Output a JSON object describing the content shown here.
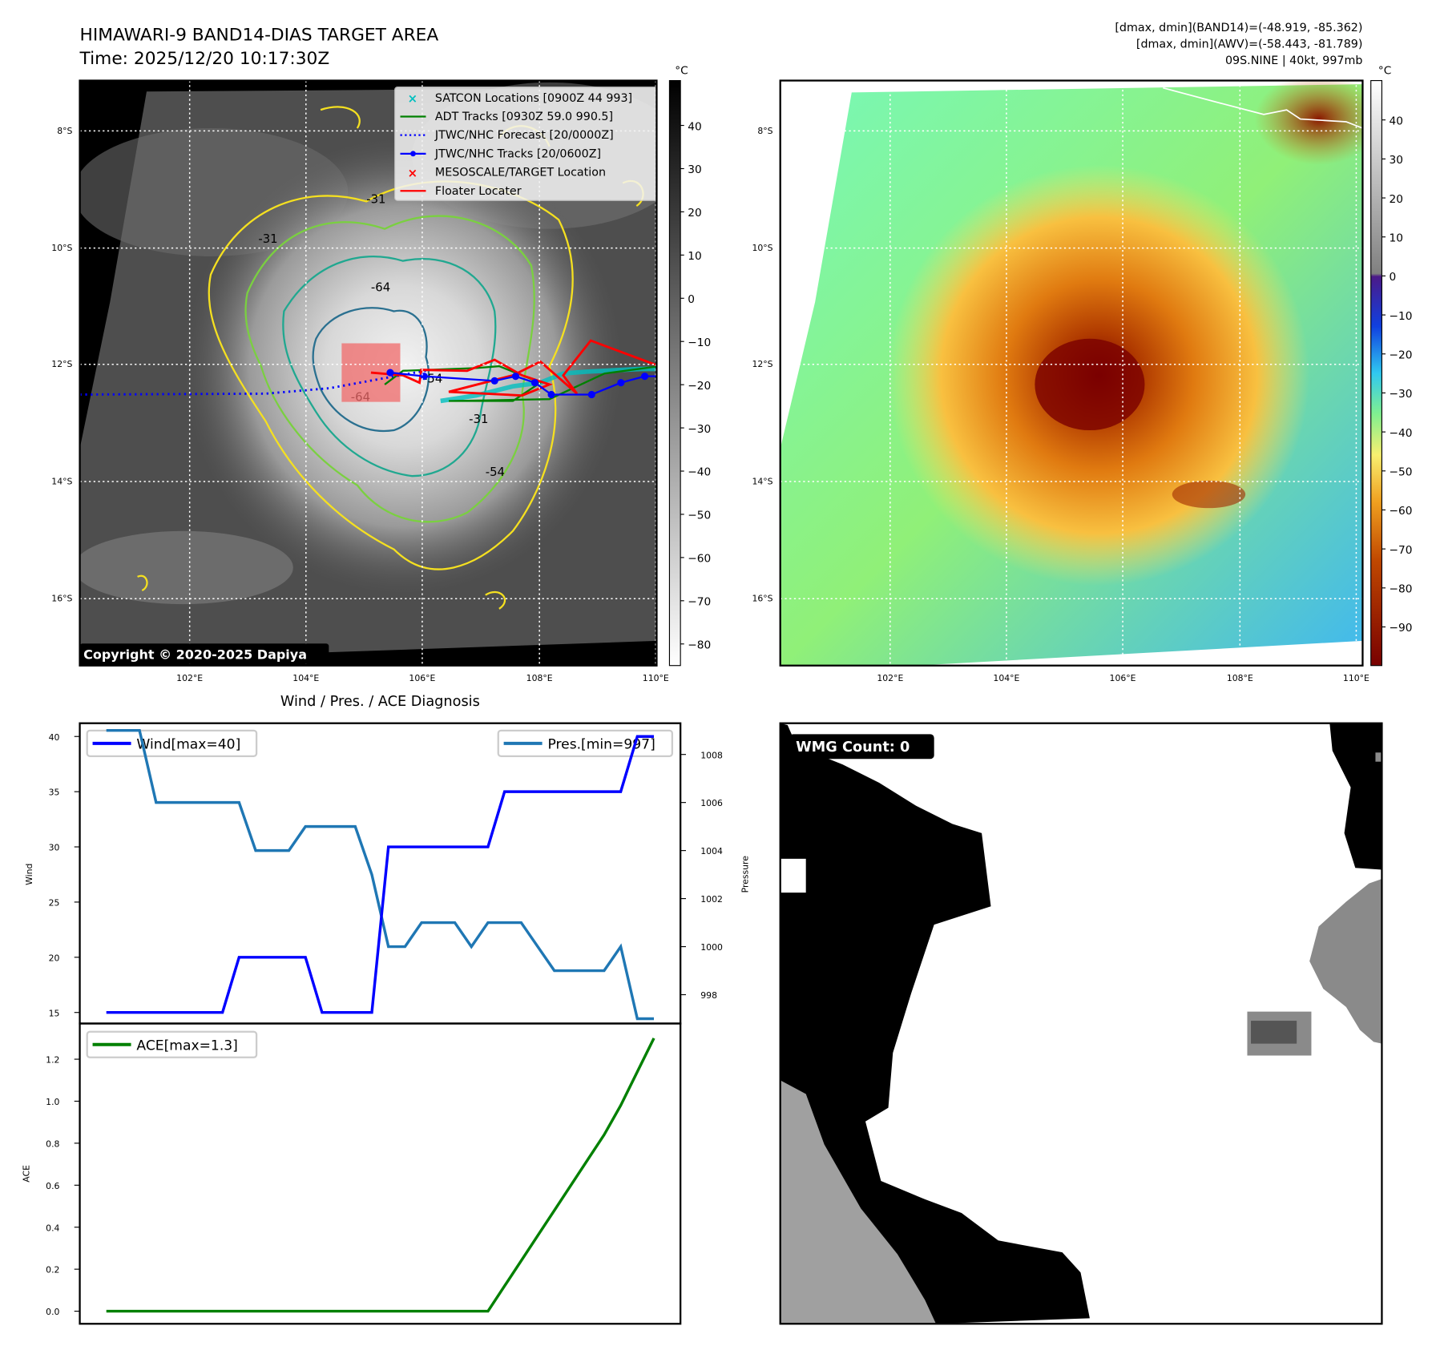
{
  "header": {
    "title_line1": "HIMAWARI-9 BAND14-DIAS TARGET AREA",
    "title_line2": "Time: 2025/12/20 10:17:30Z",
    "info_line1": "[dmax, dmin](BAND14)=(-48.919, -85.362)",
    "info_line2": "[dmax, dmin](AWV)=(-58.443, -81.789)",
    "info_line3": "09S.NINE | 40kt, 997mb"
  },
  "ir_map": {
    "copyright": "Copyright © 2020-2025 Dapiya",
    "colorbar_unit": "°C",
    "colorbar_ticks": [
      "40",
      "30",
      "20",
      "10",
      "0",
      "−10",
      "−20",
      "−30",
      "−40",
      "−50",
      "−60",
      "−70",
      "−80"
    ],
    "colorbar_values": [
      40,
      30,
      20,
      10,
      0,
      -10,
      -20,
      -30,
      -40,
      -50,
      -60,
      -70,
      -80
    ],
    "contour_labels": [
      "-31",
      "-31",
      "-64",
      "-54",
      "-64",
      "-31",
      "-54"
    ],
    "legend": [
      {
        "label": "SATCON Locations [0900Z 44 993]",
        "color": "#00bfbf",
        "style": "x"
      },
      {
        "label": "ADT Tracks [0930Z 59.0 990.5]",
        "color": "#008000",
        "style": "line"
      },
      {
        "label": "JTWC/NHC Forecast [20/0000Z]",
        "color": "#0000ff",
        "style": "dotted"
      },
      {
        "label": "JTWC/NHC Tracks [20/0600Z]",
        "color": "#0000ff",
        "style": "line-dot"
      },
      {
        "label": "MESOSCALE/TARGET Location",
        "color": "#ff0000",
        "style": "x"
      },
      {
        "label": "Floater Locater",
        "color": "#ff0000",
        "style": "line"
      }
    ]
  },
  "awv_map": {
    "colorbar_unit": "°C",
    "colorbar_ticks": [
      "40",
      "30",
      "20",
      "10",
      "0",
      "−10",
      "−20",
      "−30",
      "−40",
      "−50",
      "−60",
      "−70",
      "−80",
      "−90"
    ],
    "colorbar_values": [
      40,
      30,
      20,
      10,
      0,
      -10,
      -20,
      -30,
      -40,
      -50,
      -60,
      -70,
      -80,
      -90
    ]
  },
  "map_axes": {
    "lat_ticks": [
      "8°S",
      "10°S",
      "12°S",
      "14°S",
      "16°S"
    ],
    "lon_ticks": [
      "102°E",
      "104°E",
      "106°E",
      "108°E",
      "110°E"
    ]
  },
  "wmg": {
    "label": "WMG Count: 0"
  },
  "colors": {
    "wind": "#0000ff",
    "pressure": "#1f77b4",
    "ace": "#008000",
    "floater": "#ff0000",
    "satcon": "#00bfbf"
  },
  "chart_data": [
    {
      "type": "line",
      "title": "Wind / Pres. / ACE Diagnosis",
      "ylabel": "Wind",
      "y2label": "Pressure",
      "ylim": [
        14,
        41.2
      ],
      "y2lim": [
        996.8,
        1009.3
      ],
      "yticks": [
        15,
        20,
        25,
        30,
        35,
        40
      ],
      "y2ticks": [
        998,
        1000,
        1002,
        1004,
        1006,
        1008
      ],
      "series": [
        {
          "name": "Wind[max=40]",
          "axis": "left",
          "values": [
            15,
            15,
            15,
            15,
            15,
            15,
            15,
            15,
            20,
            20,
            20,
            20,
            20,
            15,
            15,
            15,
            15,
            30,
            30,
            30,
            30,
            30,
            30,
            30,
            35,
            35,
            35,
            35,
            35,
            35,
            35,
            35,
            40,
            40
          ]
        },
        {
          "name": "Pres.[min=997]",
          "axis": "right",
          "values": [
            1009,
            1009,
            1009,
            1006,
            1006,
            1006,
            1006,
            1006,
            1006,
            1004,
            1004,
            1004,
            1005,
            1005,
            1005,
            1005,
            1003,
            1000,
            1000,
            1001,
            1001,
            1001,
            1000,
            1001,
            1001,
            1001,
            1000,
            999,
            999,
            999,
            999,
            1000,
            997,
            997
          ]
        }
      ]
    },
    {
      "type": "line",
      "ylabel": "ACE",
      "ylim": [
        -0.06,
        1.37
      ],
      "yticks": [
        0.0,
        0.2,
        0.4,
        0.6,
        0.8,
        1.0,
        1.2
      ],
      "ytick_labels": [
        "0.0",
        "0.2",
        "0.4",
        "0.6",
        "0.8",
        "1.0",
        "1.2"
      ],
      "series": [
        {
          "name": "ACE[max=1.3]",
          "values": [
            0,
            0,
            0,
            0,
            0,
            0,
            0,
            0,
            0,
            0,
            0,
            0,
            0,
            0,
            0,
            0,
            0,
            0,
            0,
            0,
            0,
            0,
            0,
            0,
            0.12,
            0.24,
            0.36,
            0.48,
            0.6,
            0.72,
            0.84,
            0.98,
            1.14,
            1.3
          ]
        }
      ]
    }
  ]
}
